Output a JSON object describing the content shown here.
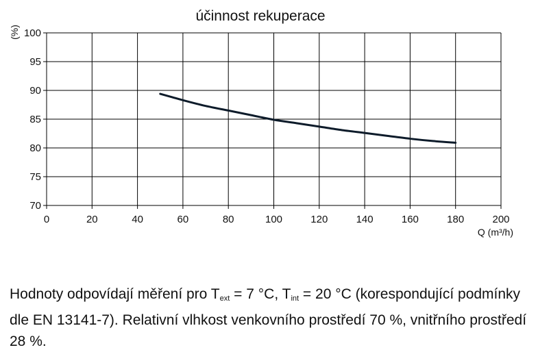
{
  "chart_data": {
    "type": "line",
    "title": "účinnost rekuperace",
    "xlabel": "Q (m³/h)",
    "ylabel": "(%)",
    "xlim": [
      0,
      200
    ],
    "ylim": [
      70,
      100
    ],
    "x_ticks": [
      "0",
      "20",
      "40",
      "60",
      "80",
      "100",
      "120",
      "140",
      "160",
      "180",
      "200"
    ],
    "y_ticks": [
      "70",
      "75",
      "80",
      "85",
      "90",
      "95",
      "100"
    ],
    "grid": true,
    "series": [
      {
        "x": [
          50,
          60,
          70,
          80,
          90,
          100,
          110,
          120,
          130,
          140,
          150,
          160,
          170,
          180
        ],
        "y": [
          89.4,
          88.3,
          87.3,
          86.5,
          85.7,
          84.9,
          84.3,
          83.7,
          83.1,
          82.6,
          82.1,
          81.6,
          81.2,
          80.9
        ]
      }
    ]
  },
  "caption": {
    "part1": "Hodnoty odpovídají měření pro T",
    "sub1": "ext",
    "part2": " = 7 °C, T",
    "sub2": "int",
    "part3": " = 20 °C (korespondující podmínky dle EN 13141-7). Relativní vlhkost venkovního prostředí 70 %, vnitřního prostředí 28 %."
  },
  "colors": {
    "line": "#0d1b2a",
    "grid": "#000000",
    "text": "#111111"
  }
}
